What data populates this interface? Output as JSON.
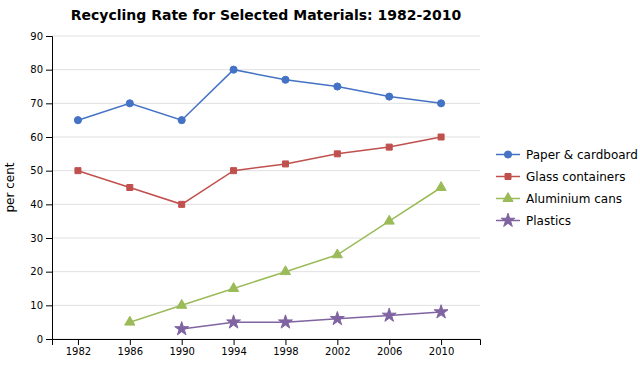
{
  "chart_data": {
    "type": "line",
    "title": "Recycling Rate for Selected Materials: 1982-2010",
    "ylabel": "per cent",
    "x": [
      1982,
      1986,
      1990,
      1994,
      1998,
      2002,
      2006,
      2010
    ],
    "series": [
      {
        "name": "Paper & cardboard",
        "color": "#4472C4",
        "marker": "circle",
        "values": [
          65,
          70,
          65,
          80,
          77,
          75,
          72,
          70
        ]
      },
      {
        "name": "Glass containers",
        "color": "#C0504D",
        "marker": "square",
        "values": [
          50,
          45,
          40,
          50,
          52,
          55,
          57,
          60
        ]
      },
      {
        "name": "Aluminium cans",
        "color": "#9BBB59",
        "marker": "triangle",
        "values": [
          null,
          5,
          10,
          15,
          20,
          25,
          35,
          45
        ]
      },
      {
        "name": "Plastics",
        "color": "#8064A2",
        "marker": "star",
        "values": [
          null,
          null,
          3,
          5,
          5,
          6,
          7,
          8
        ]
      }
    ],
    "xlim": [
      1980,
      2013
    ],
    "xticks": [
      1982,
      1986,
      1990,
      1994,
      1998,
      2002,
      2006,
      2010
    ],
    "ylim": [
      0,
      90
    ],
    "yticks": [
      0,
      10,
      20,
      30,
      40,
      50,
      60,
      70,
      80,
      90
    ],
    "grid": "y",
    "legend": "right"
  }
}
